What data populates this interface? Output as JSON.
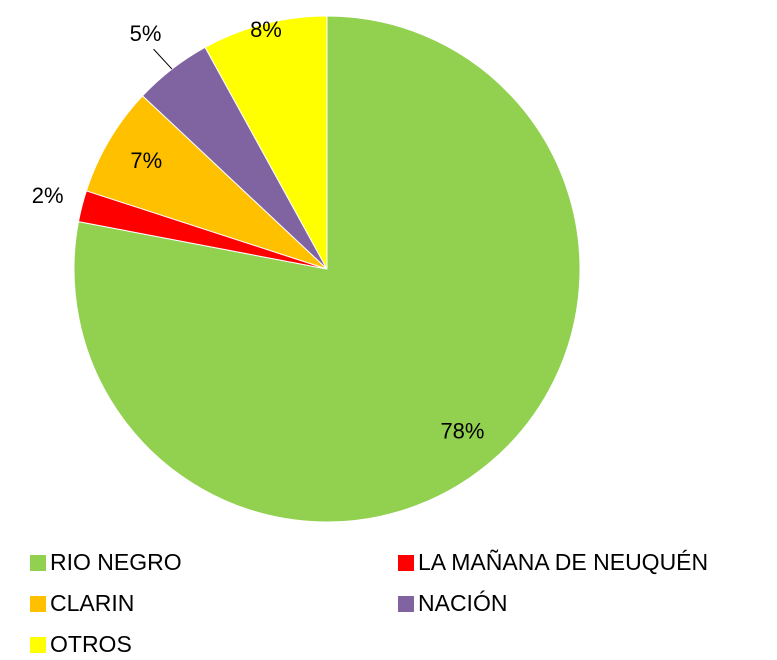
{
  "chart_data": {
    "type": "pie",
    "categories": [
      "RIO NEGRO",
      "LA MAÑANA DE NEUQUÉN",
      "CLARIN",
      "NACIÓN",
      "OTROS"
    ],
    "values": [
      78,
      2,
      7,
      5,
      8
    ],
    "value_labels": [
      "78%",
      "2%",
      "7%",
      "5%",
      "8%"
    ],
    "colors": [
      "#92d050",
      "#ff0000",
      "#ffc000",
      "#8064a2",
      "#ffff00"
    ],
    "legend": "bottom"
  }
}
